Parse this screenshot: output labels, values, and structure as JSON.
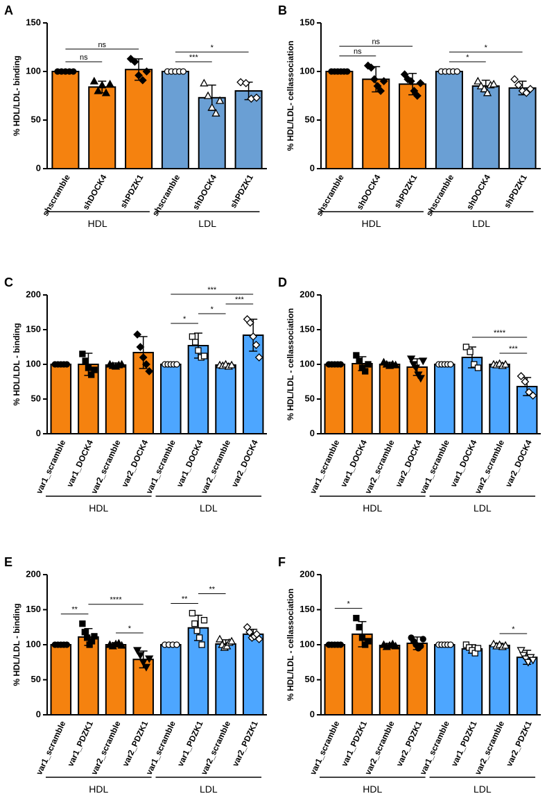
{
  "chart_data": [
    {
      "type": "bar",
      "panel": "A",
      "ylabel": "% HDL/LDL- binding",
      "categories": [
        "shscramble",
        "shDOCK4",
        "shPDZK1",
        "shscramble",
        "shDOCK4",
        "shPDZK1"
      ],
      "values": [
        100,
        84,
        102,
        100,
        73,
        80
      ],
      "errors": [
        0,
        6,
        11,
        0,
        13,
        9
      ],
      "points": [
        [
          100,
          100,
          100,
          100,
          100
        ],
        [
          90,
          80,
          86,
          78,
          87
        ],
        [
          113,
          110,
          96,
          91,
          100
        ],
        [
          100,
          100,
          100,
          100,
          100
        ],
        [
          88,
          75,
          63,
          57,
          70
        ],
        [
          89,
          88,
          72,
          73
        ]
      ],
      "colors": [
        "#f5820f",
        "#f5820f",
        "#f5820f",
        "#6a9fd4",
        "#6a9fd4",
        "#6a9fd4"
      ],
      "markers": [
        "circle",
        "triangle",
        "diamond",
        "circle-open",
        "triangle-open",
        "diamond-open"
      ],
      "ylim": [
        0,
        150
      ],
      "yticks": [
        0,
        50,
        100,
        150
      ],
      "groups": [
        {
          "label": "HDL",
          "from": 0,
          "to": 2
        },
        {
          "label": "LDL",
          "from": 3,
          "to": 5
        }
      ],
      "annotations": [
        {
          "label": "ns",
          "from": 0,
          "to": 1
        },
        {
          "label": "ns",
          "from": 0,
          "to": 2
        },
        {
          "label": "***",
          "from": 3,
          "to": 4
        },
        {
          "label": "*",
          "from": 3,
          "to": 5
        }
      ]
    },
    {
      "type": "bar",
      "panel": "B",
      "ylabel": "% HDL/LDL- cellassociation",
      "categories": [
        "shscramble",
        "shDOCK4",
        "shPDZK1",
        "shscramble",
        "shDOCK4",
        "shPDZK1"
      ],
      "values": [
        100,
        92,
        87,
        100,
        85,
        83
      ],
      "errors": [
        0,
        13,
        11,
        0,
        6,
        7
      ],
      "points": [
        [
          100,
          100,
          100,
          100,
          100,
          100
        ],
        [
          106,
          104,
          92,
          85,
          80,
          90
        ],
        [
          97,
          92,
          90,
          80,
          75,
          88
        ],
        [
          100,
          100,
          100,
          100,
          100
        ],
        [
          90,
          85,
          82,
          78,
          86,
          87
        ],
        [
          92,
          86,
          80,
          78,
          82
        ]
      ],
      "colors": [
        "#f5820f",
        "#f5820f",
        "#f5820f",
        "#6a9fd4",
        "#6a9fd4",
        "#6a9fd4"
      ],
      "markers": [
        "circle",
        "diamond",
        "diamond",
        "circle-open",
        "triangle-open",
        "diamond-open"
      ],
      "ylim": [
        0,
        150
      ],
      "yticks": [
        0,
        50,
        100,
        150
      ],
      "groups": [
        {
          "label": "HDL",
          "from": 0,
          "to": 2
        },
        {
          "label": "LDL",
          "from": 3,
          "to": 5
        }
      ],
      "annotations": [
        {
          "label": "ns",
          "from": 0,
          "to": 1
        },
        {
          "label": "ns",
          "from": 0,
          "to": 2
        },
        {
          "label": "*",
          "from": 3,
          "to": 4
        },
        {
          "label": "*",
          "from": 3,
          "to": 5
        }
      ]
    },
    {
      "type": "bar",
      "panel": "C",
      "ylabel": "% HDL/LDL - binding",
      "categories": [
        "var1_scramble",
        "var1_DOCK4",
        "var2_scramble",
        "var2_DOCK4",
        "var1_scramble",
        "var1_DOCK4",
        "var2_scramble",
        "var2_DOCK4"
      ],
      "values": [
        100,
        100,
        99,
        117,
        100,
        127,
        99,
        142
      ],
      "errors": [
        0,
        16,
        3,
        23,
        0,
        18,
        2,
        23
      ],
      "points": [
        [
          100,
          100,
          100,
          100,
          100
        ],
        [
          115,
          105,
          95,
          85,
          92
        ],
        [
          100,
          98,
          97,
          99,
          100
        ],
        [
          143,
          125,
          110,
          100,
          90
        ],
        [
          100,
          100,
          100,
          100,
          100
        ],
        [
          140,
          132,
          120,
          110,
          112
        ],
        [
          99,
          98,
          100,
          97,
          99
        ],
        [
          165,
          160,
          140,
          128,
          110
        ]
      ],
      "colors": [
        "#f5820f",
        "#f5820f",
        "#f5820f",
        "#f5820f",
        "#4da6ff",
        "#4da6ff",
        "#4da6ff",
        "#4da6ff"
      ],
      "markers": [
        "circle",
        "square",
        "triangle",
        "diamond",
        "circle-open",
        "square-open",
        "triangle-open",
        "diamond-open"
      ],
      "ylim": [
        0,
        200
      ],
      "yticks": [
        0,
        50,
        100,
        150,
        200
      ],
      "groups": [
        {
          "label": "HDL",
          "from": 0,
          "to": 3
        },
        {
          "label": "LDL",
          "from": 4,
          "to": 7
        }
      ],
      "annotations": [
        {
          "label": "*",
          "from": 4,
          "to": 5
        },
        {
          "label": "*",
          "from": 5,
          "to": 6
        },
        {
          "label": "***",
          "from": 6,
          "to": 7
        },
        {
          "label": "***",
          "from": 4,
          "to": 7
        }
      ]
    },
    {
      "type": "bar",
      "panel": "D",
      "ylabel": "% HDL/LDL - cellassociation",
      "categories": [
        "var1_scramble",
        "var1_DOCK4",
        "var2_scramble",
        "var2_DOCK4",
        "var1_scramble",
        "var1_DOCK4",
        "var2_scramble",
        "var2_DOCK4"
      ],
      "values": [
        100,
        101,
        100,
        96,
        100,
        110,
        100,
        68
      ],
      "errors": [
        0,
        10,
        3,
        12,
        0,
        15,
        2,
        13
      ],
      "points": [
        [
          100,
          100,
          100,
          100,
          100
        ],
        [
          113,
          105,
          95,
          90,
          100
        ],
        [
          103,
          100,
          98,
          100,
          99
        ],
        [
          108,
          100,
          95,
          85,
          80,
          105
        ],
        [
          100,
          100,
          100,
          100,
          100
        ],
        [
          125,
          118,
          100,
          95
        ],
        [
          100,
          99,
          101,
          98,
          100
        ],
        [
          83,
          75,
          60,
          55
        ]
      ],
      "colors": [
        "#f5820f",
        "#f5820f",
        "#f5820f",
        "#f5820f",
        "#4da6ff",
        "#4da6ff",
        "#4da6ff",
        "#4da6ff"
      ],
      "markers": [
        "circle",
        "square",
        "triangle",
        "inverted-triangle",
        "circle-open",
        "square-open",
        "triangle-open",
        "diamond-open"
      ],
      "ylim": [
        0,
        200
      ],
      "yticks": [
        0,
        50,
        100,
        150,
        200
      ],
      "groups": [
        {
          "label": "HDL",
          "from": 0,
          "to": 3
        },
        {
          "label": "LDL",
          "from": 4,
          "to": 7
        }
      ],
      "annotations": [
        {
          "label": "***",
          "from": 6,
          "to": 7
        },
        {
          "label": "****",
          "from": 5,
          "to": 7
        }
      ]
    },
    {
      "type": "bar",
      "panel": "E",
      "ylabel": "% HDL/LDL - binding",
      "categories": [
        "var1_scramble",
        "var1_PDZK1",
        "var2_scramble",
        "var2_PDZK1",
        "var1_scramble",
        "var1_PDZK1",
        "var2_scramble",
        "var2_PDZK1"
      ],
      "values": [
        100,
        111,
        100,
        79,
        100,
        124,
        101,
        115
      ],
      "errors": [
        0,
        12,
        3,
        12,
        0,
        18,
        6,
        7
      ],
      "points": [
        [
          100,
          100,
          100,
          100,
          100
        ],
        [
          130,
          118,
          110,
          100,
          105,
          112
        ],
        [
          100,
          98,
          101,
          102,
          99
        ],
        [
          92,
          85,
          75,
          68,
          80
        ],
        [
          100,
          100,
          100,
          100
        ],
        [
          145,
          130,
          120,
          110,
          100,
          135
        ],
        [
          108,
          100,
          96,
          98,
          103,
          105
        ],
        [
          125,
          118,
          110,
          112,
          115,
          108
        ]
      ],
      "colors": [
        "#f5820f",
        "#f5820f",
        "#f5820f",
        "#f5820f",
        "#4da6ff",
        "#4da6ff",
        "#4da6ff",
        "#4da6ff"
      ],
      "markers": [
        "circle",
        "square",
        "triangle",
        "inverted-triangle",
        "circle-open",
        "square-open",
        "triangle-open",
        "diamond-open"
      ],
      "ylim": [
        0,
        200
      ],
      "yticks": [
        0,
        50,
        100,
        150,
        200
      ],
      "groups": [
        {
          "label": "HDL",
          "from": 0,
          "to": 3
        },
        {
          "label": "LDL",
          "from": 4,
          "to": 7
        }
      ],
      "annotations": [
        {
          "label": "**",
          "from": 0,
          "to": 1
        },
        {
          "label": "*",
          "from": 2,
          "to": 3
        },
        {
          "label": "****",
          "from": 1,
          "to": 3
        },
        {
          "label": "**",
          "from": 4,
          "to": 5
        },
        {
          "label": "**",
          "from": 5,
          "to": 6
        }
      ]
    },
    {
      "type": "bar",
      "panel": "F",
      "ylabel": "% HDL/LDL - cellassociation",
      "categories": [
        "var1_scramble",
        "var1_PDZK1",
        "var2_scramble",
        "var2_PDZK1",
        "var1_scramble",
        "var1_PDZK1",
        "var2_scramble",
        "var2_PDZK1"
      ],
      "values": [
        100,
        115,
        99,
        102,
        100,
        94,
        99,
        82
      ],
      "errors": [
        0,
        18,
        3,
        9,
        0,
        6,
        3,
        10
      ],
      "points": [
        [
          100,
          100,
          100,
          100,
          100
        ],
        [
          138,
          125,
          110,
          100,
          105
        ],
        [
          100,
          97,
          99,
          101,
          98
        ],
        [
          110,
          105,
          100,
          95,
          98,
          108
        ],
        [
          100,
          100,
          100,
          100,
          100
        ],
        [
          100,
          96,
          92,
          88,
          95
        ],
        [
          101,
          98,
          100,
          97,
          99
        ],
        [
          92,
          85,
          80,
          75,
          82,
          78
        ]
      ],
      "colors": [
        "#f5820f",
        "#f5820f",
        "#f5820f",
        "#f5820f",
        "#4da6ff",
        "#4da6ff",
        "#4da6ff",
        "#4da6ff"
      ],
      "markers": [
        "circle",
        "square",
        "triangle",
        "circle",
        "circle-open",
        "square-open",
        "triangle-open",
        "inverted-triangle-open"
      ],
      "ylim": [
        0,
        200
      ],
      "yticks": [
        0,
        50,
        100,
        150,
        200
      ],
      "groups": [
        {
          "label": "HDL",
          "from": 0,
          "to": 3
        },
        {
          "label": "LDL",
          "from": 4,
          "to": 7
        }
      ],
      "annotations": [
        {
          "label": "*",
          "from": 0,
          "to": 1
        },
        {
          "label": "*",
          "from": 6,
          "to": 7
        }
      ]
    }
  ]
}
